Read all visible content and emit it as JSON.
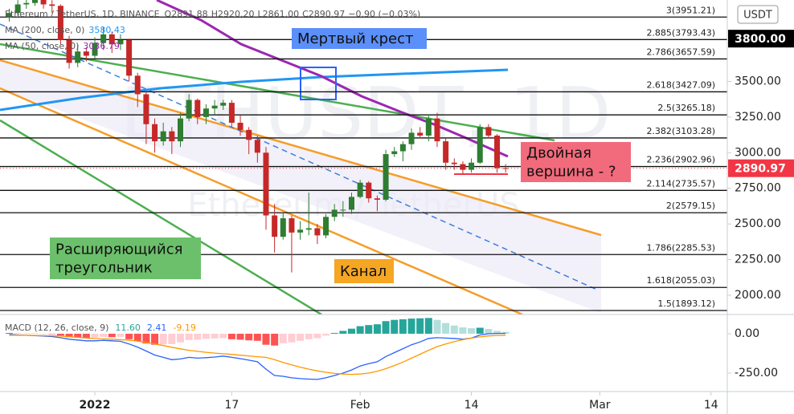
{
  "chart_data": [
    {
      "type": "candlestick",
      "title": "Ethereum / TetherUS, 1D, BINANCE",
      "ohlc_labels": [
        "O2891.88",
        "H2920.20",
        "L2861.00",
        "C2890.97",
        "−0.90 (−0.03%)"
      ],
      "indicators": [
        {
          "label": "MA (200, close, 0)",
          "value_label": "3580.43",
          "color": "#2196f3"
        },
        {
          "label": "MA (50, close, 0)",
          "value_label": "3036.79",
          "color": "#9c27b0"
        }
      ],
      "watermark": [
        "ETHUSDT, 1D",
        "Ethereum / TetherUS"
      ],
      "currency": "USDT",
      "up_color": "#2e7d32",
      "down_color": "#c62828",
      "x": [
        -10,
        -9,
        -8,
        -7,
        -6,
        -5,
        -4,
        -3,
        -2,
        -1,
        0,
        1,
        2,
        3,
        4,
        5,
        6,
        7,
        8,
        9,
        10,
        11,
        12,
        13,
        14,
        15,
        16,
        17,
        18,
        19,
        20,
        21,
        22,
        23,
        24,
        25,
        26,
        27,
        28,
        29,
        30,
        31,
        32,
        33,
        34,
        35,
        36,
        37,
        38,
        39,
        40,
        41,
        42,
        43,
        44,
        45,
        46,
        47,
        48
      ],
      "open": [
        3950,
        3980,
        4040,
        4050,
        4090,
        4040,
        4030,
        3790,
        3630,
        3710,
        3680,
        3770,
        3830,
        3760,
        3790,
        3540,
        3410,
        3200,
        3080,
        3150,
        3080,
        3240,
        3370,
        3250,
        3310,
        3330,
        3350,
        3210,
        3160,
        3090,
        3000,
        2560,
        2410,
        2540,
        2440,
        2460,
        2470,
        2420,
        2550,
        2600,
        2600,
        2690,
        2790,
        2680,
        2670,
        2990,
        3010,
        3060,
        3140,
        3120,
        3240,
        3080,
        2930,
        2920,
        2880,
        2930,
        3180,
        3120,
        2891.88
      ],
      "high": [
        4010,
        4070,
        4080,
        4120,
        4110,
        4070,
        4040,
        3820,
        3760,
        3740,
        3810,
        3880,
        3850,
        3830,
        3800,
        3560,
        3430,
        3240,
        3210,
        3180,
        3280,
        3410,
        3380,
        3340,
        3370,
        3370,
        3370,
        3260,
        3180,
        3120,
        3040,
        2640,
        2580,
        2560,
        2520,
        2720,
        2500,
        2570,
        2640,
        2660,
        2720,
        2810,
        2800,
        2700,
        3020,
        3040,
        3080,
        3170,
        3180,
        3270,
        3280,
        3100,
        2960,
        2940,
        2960,
        3200,
        3200,
        3130,
        2920.2
      ],
      "low": [
        3920,
        3960,
        4010,
        4030,
        4010,
        3980,
        3760,
        3590,
        3600,
        3640,
        3660,
        3720,
        3700,
        3720,
        3500,
        3320,
        3060,
        3000,
        3050,
        2990,
        3040,
        3220,
        3200,
        3200,
        3270,
        3300,
        3180,
        3120,
        2990,
        2930,
        2460,
        2300,
        2390,
        2160,
        2390,
        2420,
        2360,
        2400,
        2520,
        2550,
        2570,
        2680,
        2650,
        2590,
        2660,
        2970,
        2940,
        3020,
        3100,
        3080,
        3040,
        2880,
        2880,
        2850,
        2860,
        2920,
        3100,
        2860,
        2861.0
      ],
      "close": [
        3980,
        4040,
        4050,
        4090,
        4040,
        4030,
        3790,
        3630,
        3710,
        3680,
        3770,
        3830,
        3760,
        3790,
        3540,
        3410,
        3200,
        3080,
        3150,
        3080,
        3240,
        3370,
        3250,
        3310,
        3330,
        3350,
        3210,
        3160,
        3090,
        3000,
        2560,
        2410,
        2540,
        2440,
        2460,
        2470,
        2420,
        2550,
        2600,
        2600,
        2690,
        2790,
        2680,
        2670,
        2990,
        3010,
        3060,
        3140,
        3120,
        3240,
        3080,
        2930,
        2920,
        2880,
        2930,
        3180,
        3120,
        2891.88,
        2890.97
      ],
      "xlim": [
        -11.08,
        73.9
      ],
      "xticks": [
        {
          "value": 0,
          "label": "2022"
        },
        {
          "value": 16,
          "label": "17"
        },
        {
          "value": 31,
          "label": "Feb"
        },
        {
          "value": 44,
          "label": "14"
        },
        {
          "value": 59,
          "label": "Mar"
        },
        {
          "value": 72,
          "label": "14"
        }
      ],
      "ylim": [
        1865,
        4071
      ],
      "yticks": [
        {
          "value": 2000,
          "label": "2000.00"
        },
        {
          "value": 2250,
          "label": "2250.00"
        },
        {
          "value": 2500,
          "label": "2500.00"
        },
        {
          "value": 2750,
          "label": "2750.00"
        },
        {
          "value": 3000,
          "label": "3000.00"
        },
        {
          "value": 3250,
          "label": "3250.00"
        },
        {
          "value": 3500,
          "label": "3500.00"
        }
      ],
      "price_badges": [
        {
          "value": 3800,
          "label": "3800.00",
          "color": "#000000"
        },
        {
          "value": 2890.97,
          "label": "2890.97",
          "color": "#f23645"
        }
      ],
      "fib_levels": [
        {
          "value": 3951.21,
          "label": "3(3951.21)"
        },
        {
          "value": 3793.43,
          "label": "2.885(3793.43)"
        },
        {
          "value": 3657.59,
          "label": "2.786(3657.59)"
        },
        {
          "value": 3427.09,
          "label": "2.618(3427.09)"
        },
        {
          "value": 3265.18,
          "label": "2.5(3265.18)"
        },
        {
          "value": 3103.28,
          "label": "2.382(3103.28)"
        },
        {
          "value": 2902.96,
          "label": "2.236(2902.96)"
        },
        {
          "value": 2735.57,
          "label": "2.114(2735.57)"
        },
        {
          "value": 2579.15,
          "label": "2(2579.15)"
        },
        {
          "value": 2285.53,
          "label": "1.786(2285.53)"
        },
        {
          "value": 2055.03,
          "label": "1.618(2055.03)"
        },
        {
          "value": 1893.12,
          "label": "1.5(1893.12)"
        }
      ],
      "annotations": [
        {
          "lines": [
            "Мертвый крест"
          ],
          "color": "#5b8ff9"
        },
        {
          "lines": [
            "Двойная",
            "вершина - ?"
          ],
          "color": "#f26b7c"
        },
        {
          "lines": [
            "Расширяющийся",
            "треугольник"
          ],
          "color": "#6cc06b"
        },
        {
          "lines": [
            "Канал"
          ],
          "color": "#f5a623"
        }
      ]
    },
    {
      "type": "macd",
      "title": "MACD (12, 26, close, 9)",
      "legend_values": [
        {
          "label": "11.60",
          "color": "#26a69a"
        },
        {
          "label": "2.41",
          "color": "#2962ff"
        },
        {
          "label": "-9.19",
          "color": "#ff9800"
        }
      ],
      "histogram": [
        5,
        4,
        3,
        2,
        0,
        -3,
        -12,
        -22,
        -25,
        -28,
        -25,
        -20,
        -22,
        -20,
        -35,
        -48,
        -62,
        -70,
        -68,
        -66,
        -55,
        -40,
        -38,
        -33,
        -30,
        -28,
        -35,
        -38,
        -42,
        -45,
        -70,
        -75,
        -60,
        -55,
        -45,
        -35,
        -28,
        -12,
        5,
        18,
        32,
        48,
        55,
        60,
        80,
        88,
        92,
        96,
        98,
        100,
        88,
        68,
        52,
        40,
        35,
        38,
        30,
        18,
        11.6
      ],
      "macd": [
        -5,
        -8,
        -10,
        -12,
        -15,
        -18,
        -25,
        -35,
        -40,
        -45,
        -45,
        -42,
        -45,
        -48,
        -65,
        -85,
        -110,
        -135,
        -150,
        -165,
        -160,
        -150,
        -155,
        -152,
        -148,
        -142,
        -150,
        -158,
        -168,
        -178,
        -225,
        -265,
        -270,
        -280,
        -285,
        -288,
        -290,
        -280,
        -265,
        -250,
        -230,
        -205,
        -190,
        -178,
        -145,
        -120,
        -95,
        -70,
        -52,
        -30,
        -25,
        -28,
        -30,
        -35,
        -28,
        -8,
        0,
        2,
        2.41
      ],
      "signal": [
        -10,
        -10,
        -10,
        -11,
        -12,
        -13,
        -15,
        -19,
        -23,
        -27,
        -31,
        -33,
        -35,
        -38,
        -41,
        -47,
        -55,
        -65,
        -75,
        -86,
        -96,
        -105,
        -112,
        -118,
        -123,
        -127,
        -131,
        -136,
        -141,
        -146,
        -150,
        -165,
        -182,
        -198,
        -212,
        -225,
        -236,
        -245,
        -252,
        -256,
        -258,
        -256,
        -250,
        -238,
        -222,
        -202,
        -180,
        -155,
        -130,
        -105,
        -82,
        -65,
        -50,
        -38,
        -28,
        -20,
        -14,
        -11,
        -9.19
      ],
      "hist_colors": [
        "#26a69a",
        "#b2dfdb",
        "#ff5252",
        "#ffcdd2"
      ],
      "ylim": [
        -367,
        122
      ],
      "yticks": [
        {
          "value": 0,
          "label": "0.00"
        },
        {
          "value": -250,
          "label": "-250.00"
        }
      ]
    }
  ]
}
